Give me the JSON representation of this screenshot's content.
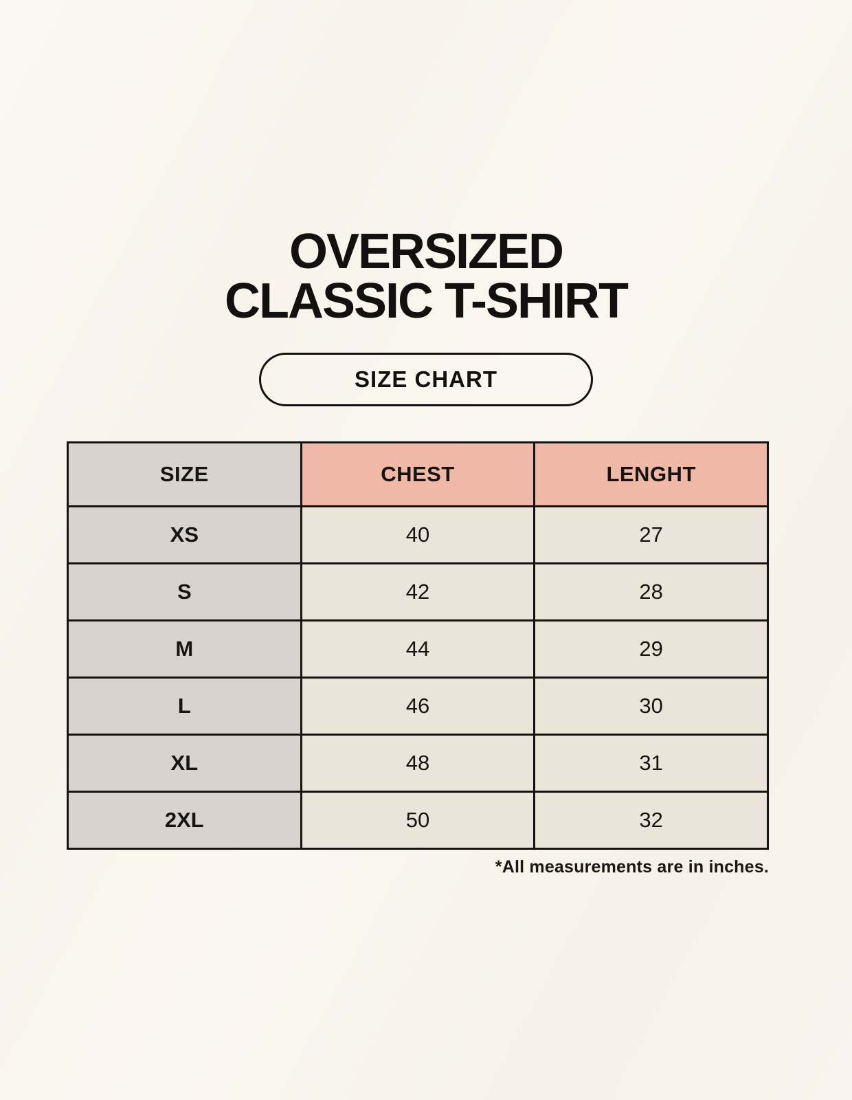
{
  "title": {
    "line1": "OVERSIZED",
    "line2": "CLASSIC T-SHIRT"
  },
  "size_chart_button": {
    "label": "SIZE CHART"
  },
  "table": {
    "headers": [
      "SIZE",
      "CHEST",
      "LENGHT"
    ],
    "rows": [
      {
        "size": "XS",
        "chest": "40",
        "lenght": "27"
      },
      {
        "size": "S",
        "chest": "42",
        "lenght": "28"
      },
      {
        "size": "M",
        "chest": "44",
        "lenght": "29"
      },
      {
        "size": "L",
        "chest": "46",
        "lenght": "30"
      },
      {
        "size": "XL",
        "chest": "48",
        "lenght": "31"
      },
      {
        "size": "2XL",
        "chest": "50",
        "lenght": "32"
      }
    ],
    "units_note": "*All measurements are in inches."
  },
  "colors": {
    "page_background": "#f9f5ee",
    "size_column_bg": "#d8d3cf",
    "header_accent_bg": "#efb8a7",
    "data_cell_bg": "#eae4d9",
    "border": "#161412",
    "text": "#131110"
  }
}
